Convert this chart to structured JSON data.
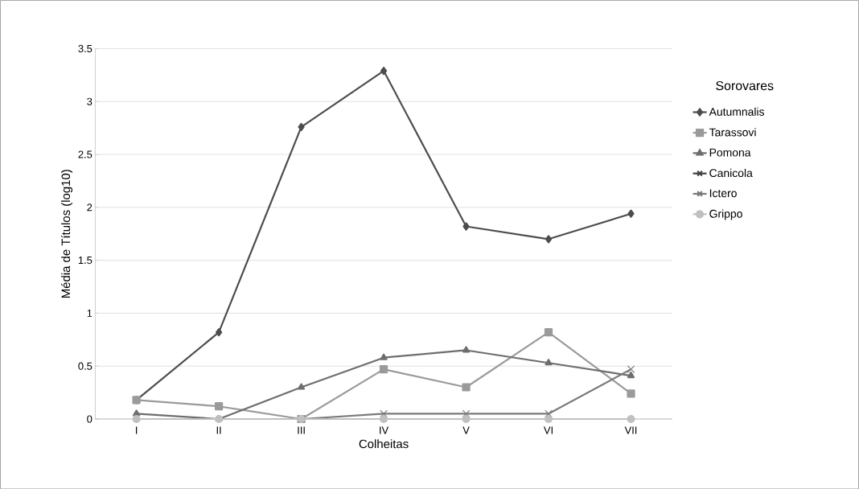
{
  "chart_data": {
    "type": "line",
    "xlabel": "Colheitas",
    "ylabel": "Média de Títulos (log10)",
    "legend_title": "Sorovares",
    "categories": [
      "I",
      "II",
      "III",
      "IV",
      "V",
      "VI",
      "VII"
    ],
    "ylim": [
      0,
      3.5
    ],
    "yticks": [
      0,
      {
        "value": 0.5,
        "label": "0.5"
      },
      1,
      {
        "value": 1.5,
        "label": "1.5"
      },
      2,
      {
        "value": 2.5,
        "label": "2.5"
      },
      3,
      {
        "value": 3.5,
        "label": "3.5"
      }
    ],
    "grid": "y",
    "legend": "right",
    "line_style": "solid",
    "series": [
      {
        "name": "Autumnalis",
        "color": "#4d4d4d",
        "marker": "diamond",
        "values": [
          0.18,
          0.82,
          2.76,
          3.29,
          1.82,
          1.7,
          1.94
        ]
      },
      {
        "name": "Tarassovi",
        "color": "#9a9a9a",
        "marker": "square",
        "values": [
          0.18,
          0.12,
          0,
          0.47,
          0.3,
          0.82,
          0.24
        ]
      },
      {
        "name": "Pomona",
        "color": "#6e6e6e",
        "marker": "triangle",
        "values": [
          0.05,
          0,
          0.3,
          0.58,
          0.65,
          0.53,
          0.41
        ]
      },
      {
        "name": "Canicola",
        "color": "#404040",
        "marker": "cross",
        "values": [
          null,
          null,
          null,
          null,
          null,
          null,
          null
        ]
      },
      {
        "name": "Ictero",
        "color": "#7a7a7a",
        "marker": "cross",
        "values": [
          null,
          null,
          0,
          0.05,
          0.05,
          0.05,
          0.47
        ]
      },
      {
        "name": "Grippo",
        "color": "#c0c0c0",
        "marker": "circle",
        "values": [
          0,
          0,
          0,
          0,
          0,
          0,
          0
        ]
      }
    ]
  }
}
